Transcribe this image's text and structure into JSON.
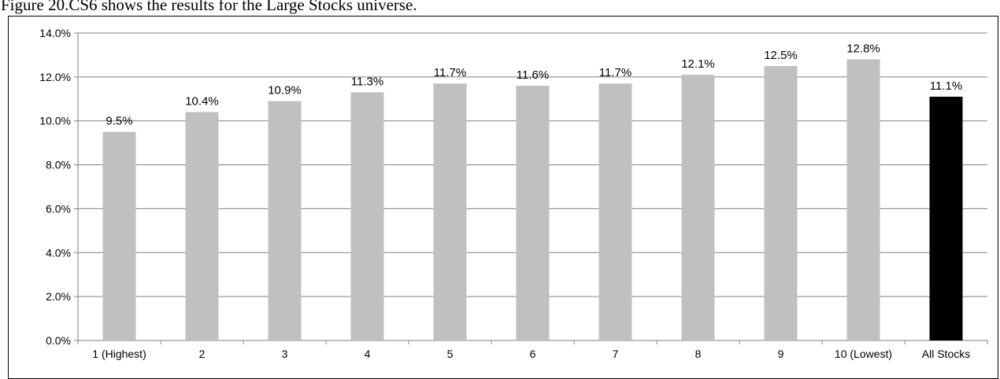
{
  "caption": "Figure 20.CS6 shows the results for the Large Stocks universe.",
  "chart_data": {
    "type": "bar",
    "categories": [
      "1 (Highest)",
      "2",
      "3",
      "4",
      "5",
      "6",
      "7",
      "8",
      "9",
      "10 (Lowest)",
      "All Stocks"
    ],
    "values": [
      9.5,
      10.4,
      10.9,
      11.3,
      11.7,
      11.6,
      11.7,
      12.1,
      12.5,
      12.8,
      11.1
    ],
    "data_labels": [
      "9.5%",
      "10.4%",
      "10.9%",
      "11.3%",
      "11.7%",
      "11.6%",
      "11.7%",
      "12.1%",
      "12.5%",
      "12.8%",
      "11.1%"
    ],
    "y_ticks": [
      0,
      2,
      4,
      6,
      8,
      10,
      12,
      14
    ],
    "y_tick_labels": [
      "0.0%",
      "2.0%",
      "4.0%",
      "6.0%",
      "8.0%",
      "10.0%",
      "12.0%",
      "14.0%"
    ],
    "ylim": [
      0,
      14
    ],
    "grid": true,
    "legend": "none",
    "title": "",
    "xlabel": "",
    "ylabel": "",
    "colors": {
      "bar": "#c0c0c0",
      "highlight_bar": "#000000",
      "grid": "#808080",
      "axis": "#808080"
    },
    "highlight_index": 10
  }
}
